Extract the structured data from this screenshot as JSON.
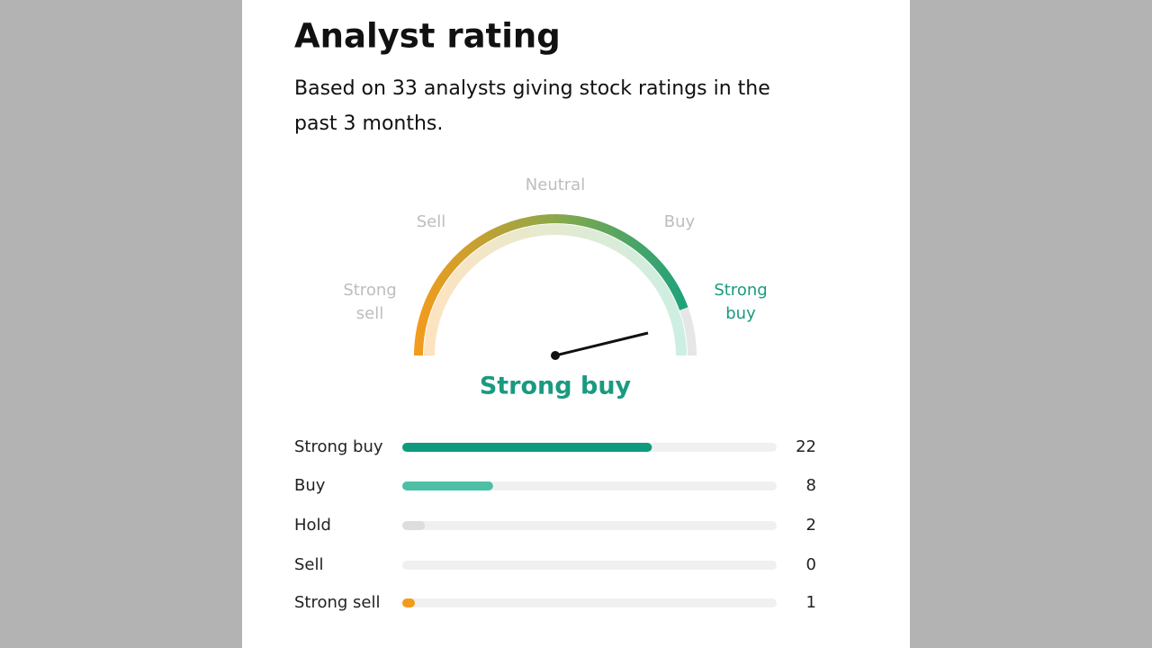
{
  "header": {
    "title": "Analyst rating",
    "subtitle_lines": [
      "Based on 33 analysts giving stock ratings in the",
      "past 3 months."
    ]
  },
  "gauge": {
    "labels": {
      "strong_sell": [
        "Strong",
        "sell"
      ],
      "sell": "Sell",
      "neutral": "Neutral",
      "buy": "Buy",
      "strong_buy": [
        "Strong",
        "buy"
      ]
    },
    "result": "Strong buy"
  },
  "ratings": [
    {
      "label": "Strong buy",
      "count": 22,
      "color": "#0e9a7e"
    },
    {
      "label": "Buy",
      "count": 8,
      "color": "#4cbfa6"
    },
    {
      "label": "Hold",
      "count": 2,
      "color": "#dddddd"
    },
    {
      "label": "Sell",
      "count": 0,
      "color": "#dddddd"
    },
    {
      "label": "Strong sell",
      "count": 1,
      "color": "#f29b1d"
    }
  ]
}
